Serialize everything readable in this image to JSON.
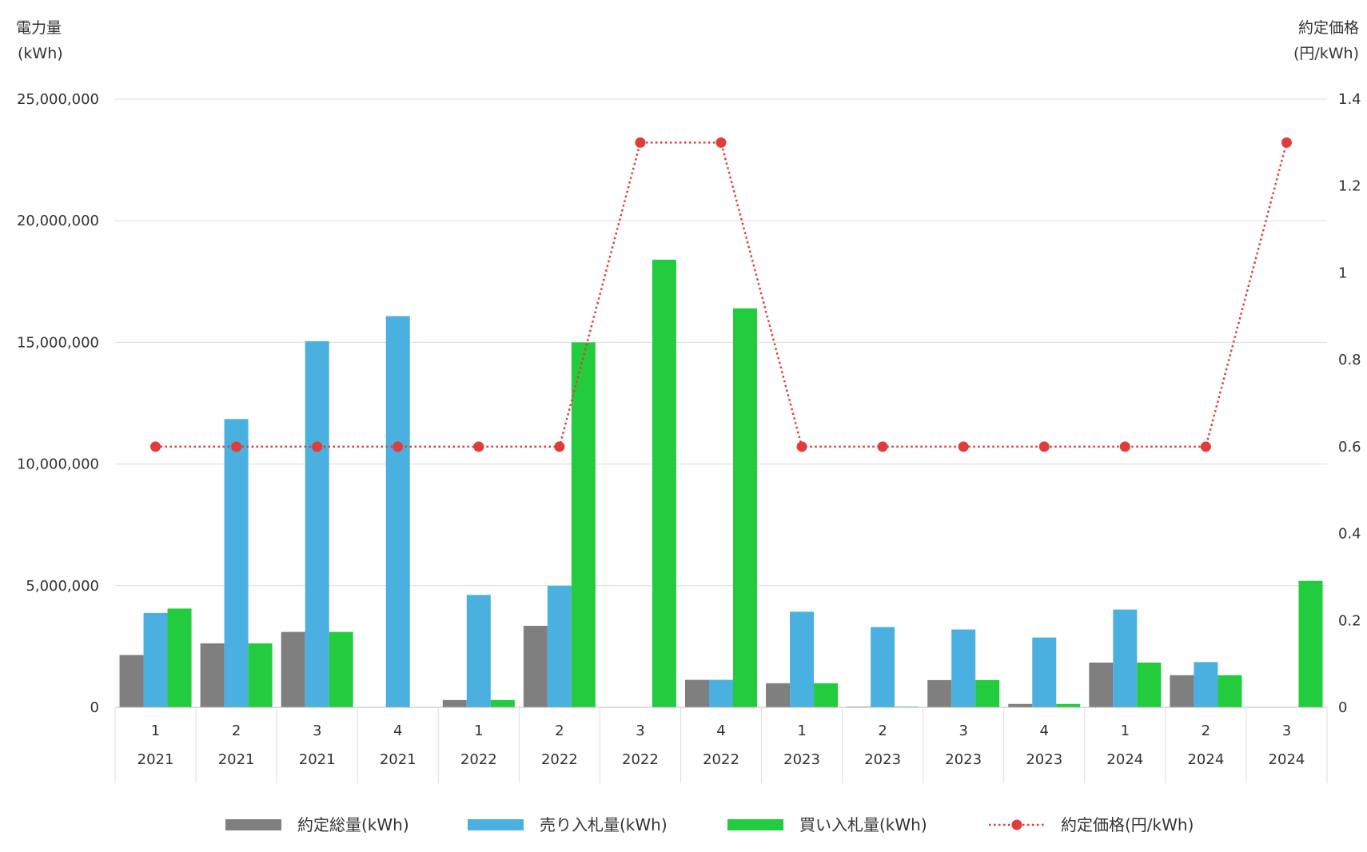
{
  "chart_data": {
    "type": "bar",
    "title": "",
    "y_left": {
      "label_line1": "電力量",
      "label_line2": "(kWh)",
      "ylim": [
        0,
        25000000
      ],
      "ticks": [
        "0",
        "5,000,000",
        "10,000,000",
        "15,000,000",
        "20,000,000",
        "25,000,000"
      ]
    },
    "y_right": {
      "label_line1": "約定価格",
      "label_line2": "(円/kWh)",
      "ylim": [
        0,
        1.4
      ],
      "ticks": [
        "0",
        "0.2",
        "0.4",
        "0.6",
        "0.8",
        "1",
        "1.2",
        "1.4"
      ]
    },
    "categories": [
      {
        "quarter": "1",
        "year": "2021"
      },
      {
        "quarter": "2",
        "year": "2021"
      },
      {
        "quarter": "3",
        "year": "2021"
      },
      {
        "quarter": "4",
        "year": "2021"
      },
      {
        "quarter": "1",
        "year": "2022"
      },
      {
        "quarter": "2",
        "year": "2022"
      },
      {
        "quarter": "3",
        "year": "2022"
      },
      {
        "quarter": "4",
        "year": "2022"
      },
      {
        "quarter": "1",
        "year": "2023"
      },
      {
        "quarter": "2",
        "year": "2023"
      },
      {
        "quarter": "3",
        "year": "2023"
      },
      {
        "quarter": "4",
        "year": "2023"
      },
      {
        "quarter": "1",
        "year": "2024"
      },
      {
        "quarter": "2",
        "year": "2024"
      },
      {
        "quarter": "3",
        "year": "2024"
      }
    ],
    "series": [
      {
        "name": "約定総量(kWh)",
        "type": "bar",
        "axis": "left",
        "color": "#7f7f7f",
        "values": [
          2150000,
          2630000,
          3100000,
          0,
          300000,
          3350000,
          0,
          1130000,
          990000,
          30000,
          1120000,
          140000,
          1840000,
          1320000,
          0
        ]
      },
      {
        "name": "売り入札量(kWh)",
        "type": "bar",
        "axis": "left",
        "color": "#4ab0e0",
        "values": [
          3880000,
          11850000,
          15050000,
          16080000,
          4620000,
          5000000,
          0,
          1130000,
          3930000,
          3300000,
          3200000,
          2870000,
          4020000,
          1860000,
          0
        ]
      },
      {
        "name": "買い入札量(kWh)",
        "type": "bar",
        "axis": "left",
        "color": "#22cc3c",
        "values": [
          4060000,
          2630000,
          3100000,
          0,
          300000,
          15000000,
          18400000,
          16400000,
          990000,
          30000,
          1120000,
          140000,
          1840000,
          1320000,
          5200000
        ]
      },
      {
        "name": "約定価格(円/kWh)",
        "type": "line",
        "axis": "right",
        "color": "#e03c3c",
        "style": "dotted",
        "values": [
          0.6,
          0.6,
          0.6,
          0.6,
          0.6,
          0.6,
          1.3,
          1.3,
          0.6,
          0.6,
          0.6,
          0.6,
          0.6,
          0.6,
          1.3
        ]
      }
    ],
    "grid": true,
    "legend_position": "bottom"
  }
}
